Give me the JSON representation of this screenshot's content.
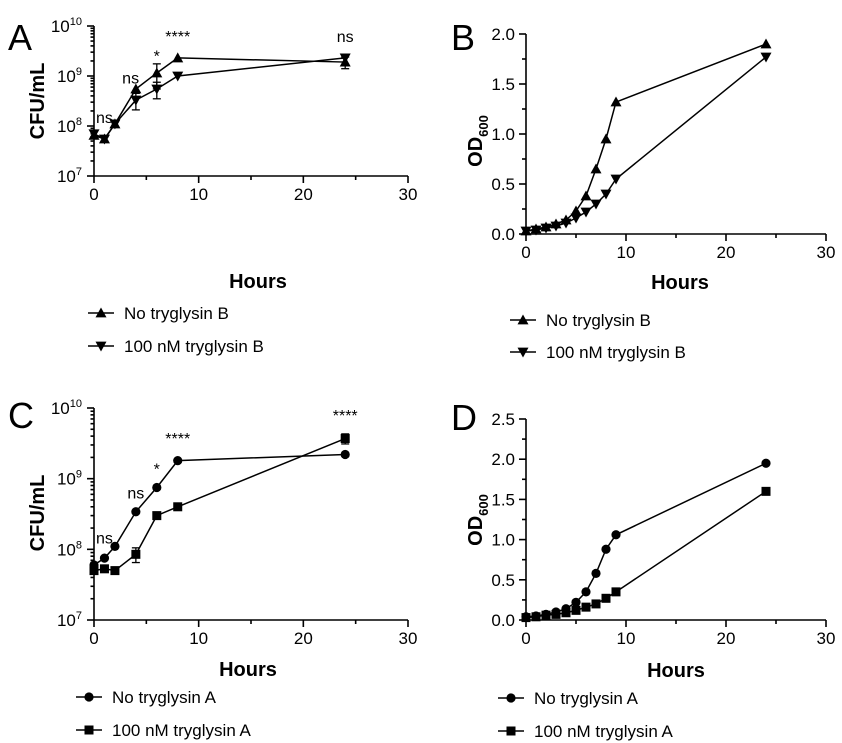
{
  "chart_data": [
    {
      "panel": "A",
      "type": "line",
      "ylabel": "CFU/mL",
      "xlabel": "Hours",
      "yscale": "log",
      "ylim": [
        10000000.0,
        10000000000.0
      ],
      "yticks": [
        {
          "value": 10000000.0,
          "base": "10",
          "exp": "7"
        },
        {
          "value": 100000000.0,
          "base": "10",
          "exp": "8"
        },
        {
          "value": 1000000000.0,
          "base": "10",
          "exp": "9"
        },
        {
          "value": 10000000000.0,
          "base": "10",
          "exp": "10"
        }
      ],
      "xlim": [
        0,
        30
      ],
      "xticks": [
        "0",
        "10",
        "20",
        "30"
      ],
      "series": [
        {
          "name": "No tryglysin B",
          "marker": "triangle-up",
          "x": [
            0,
            1,
            2,
            4,
            6,
            8,
            24
          ],
          "y": [
            65000000.0,
            55000000.0,
            110000000.0,
            550000000.0,
            1150000000.0,
            2300000000.0,
            1900000000.0
          ],
          "err": [
            0,
            0,
            0,
            0,
            600000000.0,
            0,
            500000000.0
          ]
        },
        {
          "name": "100 nM tryglysin B",
          "marker": "triangle-down",
          "x": [
            0,
            1,
            2,
            4,
            6,
            8,
            24
          ],
          "y": [
            70000000.0,
            55000000.0,
            110000000.0,
            330000000.0,
            550000000.0,
            1000000000.0,
            2300000000.0
          ],
          "err": [
            10000000.0,
            0,
            0,
            120000000.0,
            200000000.0,
            0,
            0
          ]
        }
      ],
      "annotations": [
        {
          "text": "ns",
          "x": 1,
          "y": 115000000.0
        },
        {
          "text": "ns",
          "x": 3.5,
          "y": 700000000.0
        },
        {
          "text": "*",
          "x": 6,
          "y": 1950000000.0
        },
        {
          "text": "****",
          "x": 8,
          "y": 4800000000.0
        },
        {
          "text": "ns",
          "x": 24,
          "y": 4800000000.0
        }
      ]
    },
    {
      "panel": "B",
      "type": "line",
      "ylabel_base": "OD",
      "ylabel_sub": "600",
      "xlabel": "Hours",
      "ylim": [
        0,
        2.0
      ],
      "yticks": [
        "0.0",
        "0.5",
        "1.0",
        "1.5",
        "2.0"
      ],
      "xlim": [
        0,
        30
      ],
      "xticks": [
        "0",
        "10",
        "20",
        "30"
      ],
      "series": [
        {
          "name": "No tryglysin B",
          "marker": "triangle-up",
          "x": [
            0,
            1,
            2,
            3,
            4,
            5,
            6,
            7,
            8,
            9,
            24
          ],
          "y": [
            0.03,
            0.05,
            0.07,
            0.1,
            0.14,
            0.23,
            0.38,
            0.65,
            0.95,
            1.32,
            1.9
          ]
        },
        {
          "name": "100 nM tryglysin B",
          "marker": "triangle-down",
          "x": [
            0,
            1,
            2,
            3,
            4,
            5,
            6,
            7,
            8,
            9,
            24
          ],
          "y": [
            0.03,
            0.04,
            0.06,
            0.08,
            0.11,
            0.16,
            0.22,
            0.3,
            0.4,
            0.55,
            1.77
          ]
        }
      ]
    },
    {
      "panel": "C",
      "type": "line",
      "ylabel": "CFU/mL",
      "xlabel": "Hours",
      "yscale": "log",
      "ylim": [
        10000000.0,
        10000000000.0
      ],
      "yticks": [
        {
          "value": 10000000.0,
          "base": "10",
          "exp": "7"
        },
        {
          "value": 100000000.0,
          "base": "10",
          "exp": "8"
        },
        {
          "value": 1000000000.0,
          "base": "10",
          "exp": "9"
        },
        {
          "value": 10000000000.0,
          "base": "10",
          "exp": "10"
        }
      ],
      "xlim": [
        0,
        30
      ],
      "xticks": [
        "0",
        "10",
        "20",
        "30"
      ],
      "series": [
        {
          "name": "No tryglysin A",
          "marker": "circle",
          "x": [
            0,
            1,
            2,
            4,
            6,
            8,
            24
          ],
          "y": [
            60000000.0,
            75000000.0,
            110000000.0,
            340000000.0,
            750000000.0,
            1800000000.0,
            2200000000.0
          ],
          "err": [
            0,
            0,
            0,
            0,
            0,
            0,
            0
          ]
        },
        {
          "name": "100 nM tryglysin A",
          "marker": "square",
          "x": [
            0,
            1,
            2,
            4,
            6,
            8,
            24
          ],
          "y": [
            50000000.0,
            53000000.0,
            50000000.0,
            85000000.0,
            300000000.0,
            400000000.0,
            3700000000.0
          ],
          "err": [
            0,
            0,
            0,
            20000000.0,
            0,
            0,
            600000000.0
          ]
        }
      ],
      "annotations": [
        {
          "text": "ns",
          "x": 1,
          "y": 120000000.0
        },
        {
          "text": "ns",
          "x": 4,
          "y": 520000000.0
        },
        {
          "text": "*",
          "x": 6,
          "y": 1150000000.0
        },
        {
          "text": "****",
          "x": 8,
          "y": 3100000000.0
        },
        {
          "text": "****",
          "x": 24,
          "y": 6600000000.0
        }
      ]
    },
    {
      "panel": "D",
      "type": "line",
      "ylabel_base": "OD",
      "ylabel_sub": "600",
      "xlabel": "Hours",
      "ylim": [
        0,
        2.5
      ],
      "yticks": [
        "0.0",
        "0.5",
        "1.0",
        "1.5",
        "2.0",
        "2.5"
      ],
      "xlim": [
        0,
        30
      ],
      "xticks": [
        "0",
        "10",
        "20",
        "30"
      ],
      "series": [
        {
          "name": "No tryglysin A",
          "marker": "circle",
          "x": [
            0,
            1,
            2,
            3,
            4,
            5,
            6,
            7,
            8,
            9,
            24
          ],
          "y": [
            0.04,
            0.05,
            0.07,
            0.1,
            0.14,
            0.22,
            0.35,
            0.58,
            0.88,
            1.06,
            1.95
          ]
        },
        {
          "name": "100 nM tryglysin A",
          "marker": "square",
          "x": [
            0,
            1,
            2,
            3,
            4,
            5,
            6,
            7,
            8,
            9,
            24
          ],
          "y": [
            0.03,
            0.04,
            0.06,
            0.07,
            0.09,
            0.12,
            0.16,
            0.2,
            0.27,
            0.35,
            1.6
          ]
        }
      ]
    }
  ]
}
